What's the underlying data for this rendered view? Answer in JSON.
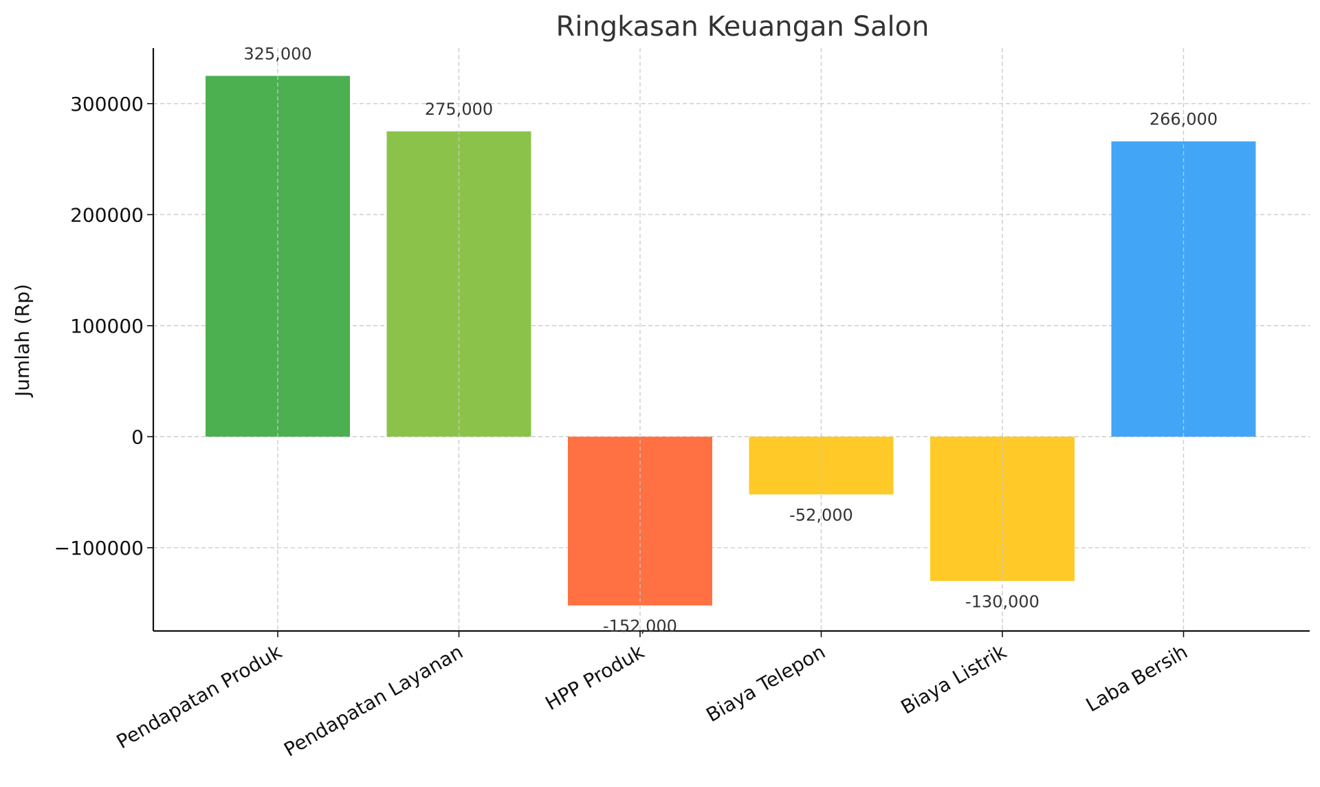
{
  "chart_data": {
    "type": "bar",
    "title": "Ringkasan Keuangan Salon",
    "xlabel": "",
    "ylabel": "Jumlah (Rp)",
    "categories": [
      "Pendapatan Produk",
      "Pendapatan Layanan",
      "HPP Produk",
      "Biaya Telepon",
      "Biaya Listrik",
      "Laba Bersih"
    ],
    "values": [
      325000,
      275000,
      -152000,
      -52000,
      -130000,
      266000
    ],
    "value_labels": [
      "325,000",
      "275,000",
      "-152,000",
      "-52,000",
      "-130,000",
      "266,000"
    ],
    "colors": [
      "#4caf50",
      "#8bc34a",
      "#ff7043",
      "#ffca28",
      "#ffca28",
      "#42a5f5"
    ],
    "ylim": [
      -175000,
      350000
    ],
    "yticks": [
      -100000,
      0,
      100000,
      200000,
      300000
    ],
    "ytick_labels": [
      "−100000",
      "0",
      "100000",
      "200000",
      "300000"
    ],
    "grid": true,
    "legend": false
  }
}
